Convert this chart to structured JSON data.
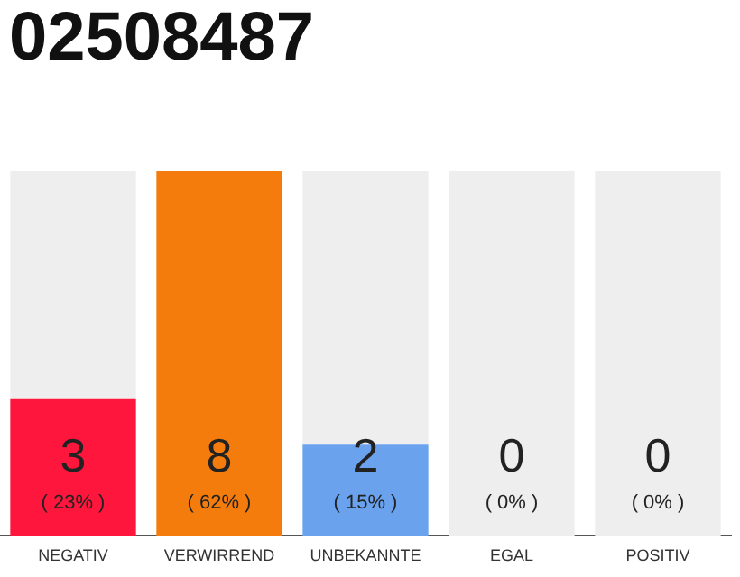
{
  "chart_data": {
    "type": "bar",
    "title": "02508487",
    "categories": [
      "NEGATIV",
      "VERWIRREND",
      "UNBEKANNTE",
      "EGAL",
      "POSITIV"
    ],
    "stacked": true,
    "series": [
      {
        "colors": [
          "#ff163c",
          "#f47c0c",
          "#6aa2ee",
          "#cccccc",
          "#cccccc"
        ],
        "values": [
          3,
          8,
          2,
          0,
          0
        ],
        "value_labels": [
          "3",
          "8",
          "2",
          null,
          null
        ]
      },
      {
        "color": "#eeeeee",
        "values": [
          5,
          0,
          6,
          8,
          8
        ]
      }
    ],
    "annotations": [
      "( 23% )",
      "( 62% )",
      "( 15% )",
      "( 0% )",
      "( 0% )",
      "0",
      "0"
    ],
    "grid": false,
    "legend": false
  }
}
